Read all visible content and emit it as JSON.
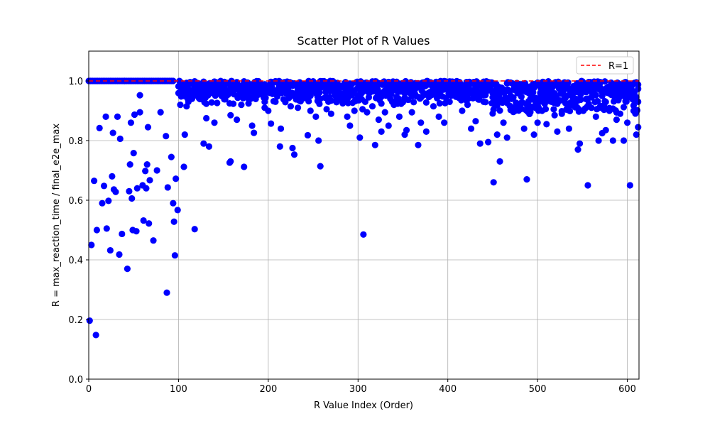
{
  "chart_data": {
    "type": "scatter",
    "title": "Scatter Plot of R Values",
    "xlabel": "R Value Index (Order)",
    "ylabel": "R = max_reaction_time / final_e2e_max",
    "xlim": [
      0,
      613
    ],
    "ylim": [
      0,
      1.1
    ],
    "xticks": [
      0,
      100,
      200,
      300,
      400,
      500,
      600
    ],
    "yticks": [
      0.0,
      0.2,
      0.4,
      0.6,
      0.8,
      1.0
    ],
    "xtick_labels": [
      "0",
      "100",
      "200",
      "300",
      "400",
      "500",
      "600"
    ],
    "ytick_labels": [
      "0.0",
      "0.2",
      "0.4",
      "0.6",
      "0.8",
      "1.0"
    ],
    "grid": true,
    "legend": "top-right",
    "series": [
      {
        "marker_color": "#0000ff",
        "points": [
          [
            1,
            0.196
          ],
          [
            3,
            0.45
          ],
          [
            6,
            0.665
          ],
          [
            8,
            0.148
          ],
          [
            9,
            0.5
          ],
          [
            12,
            0.842
          ],
          [
            15,
            0.59
          ],
          [
            17,
            0.648
          ],
          [
            19,
            0.88
          ],
          [
            20,
            0.505
          ],
          [
            22,
            0.598
          ],
          [
            24,
            0.432
          ],
          [
            26,
            0.68
          ],
          [
            27,
            0.826
          ],
          [
            28,
            0.636
          ],
          [
            30,
            0.628
          ],
          [
            32,
            0.88
          ],
          [
            34,
            0.418
          ],
          [
            35,
            0.806
          ],
          [
            37,
            0.487
          ],
          [
            40,
            1.0
          ],
          [
            43,
            0.37
          ],
          [
            45,
            0.63
          ],
          [
            46,
            0.72
          ],
          [
            47,
            0.86
          ],
          [
            48,
            0.606
          ],
          [
            49,
            0.5
          ],
          [
            50,
            0.758
          ],
          [
            51,
            0.887
          ],
          [
            53,
            0.496
          ],
          [
            54,
            0.64
          ],
          [
            57,
            0.895
          ],
          [
            57,
            0.952
          ],
          [
            60,
            0.65
          ],
          [
            61,
            0.532
          ],
          [
            63,
            0.698
          ],
          [
            64,
            0.64
          ],
          [
            65,
            0.72
          ],
          [
            66,
            0.845
          ],
          [
            67,
            0.522
          ],
          [
            68,
            0.667
          ],
          [
            72,
            0.465
          ],
          [
            76,
            0.7
          ],
          [
            80,
            0.895
          ],
          [
            86,
            0.815
          ],
          [
            87,
            0.29
          ],
          [
            88,
            0.643
          ],
          [
            92,
            0.745
          ],
          [
            94,
            0.59
          ],
          [
            95,
            0.528
          ],
          [
            96,
            0.415
          ],
          [
            97,
            0.672
          ],
          [
            99,
            0.567
          ],
          [
            102,
            0.92
          ],
          [
            103,
            0.95
          ],
          [
            104,
            0.97
          ],
          [
            106,
            0.712
          ],
          [
            107,
            0.82
          ],
          [
            109,
            0.915
          ],
          [
            111,
            0.93
          ],
          [
            113,
            0.96
          ],
          [
            115,
            0.94
          ],
          [
            116,
            0.97
          ],
          [
            118,
            0.503
          ],
          [
            128,
            0.79
          ],
          [
            131,
            0.875
          ],
          [
            134,
            0.78
          ],
          [
            140,
            0.86
          ],
          [
            150,
            0.96
          ],
          [
            157,
            0.726
          ],
          [
            158,
            0.73
          ],
          [
            158,
            0.885
          ],
          [
            165,
            0.87
          ],
          [
            170,
            0.92
          ],
          [
            173,
            0.712
          ],
          [
            178,
            0.94
          ],
          [
            182,
            0.85
          ],
          [
            184,
            0.826
          ],
          [
            190,
            0.965
          ],
          [
            196,
            0.91
          ],
          [
            200,
            0.9
          ],
          [
            203,
            0.857
          ],
          [
            210,
            0.97
          ],
          [
            213,
            0.78
          ],
          [
            214,
            0.84
          ],
          [
            220,
            0.96
          ],
          [
            225,
            0.915
          ],
          [
            227,
            0.775
          ],
          [
            229,
            0.753
          ],
          [
            233,
            0.91
          ],
          [
            240,
            0.96
          ],
          [
            244,
            0.818
          ],
          [
            247,
            0.9
          ],
          [
            253,
            0.88
          ],
          [
            256,
            0.8
          ],
          [
            258,
            0.714
          ],
          [
            265,
            0.905
          ],
          [
            270,
            0.89
          ],
          [
            276,
            0.93
          ],
          [
            283,
            0.925
          ],
          [
            288,
            0.88
          ],
          [
            291,
            0.85
          ],
          [
            296,
            0.9
          ],
          [
            302,
            0.81
          ],
          [
            305,
            0.905
          ],
          [
            306,
            0.485
          ],
          [
            310,
            0.895
          ],
          [
            316,
            0.915
          ],
          [
            319,
            0.785
          ],
          [
            323,
            0.87
          ],
          [
            326,
            0.83
          ],
          [
            330,
            0.895
          ],
          [
            334,
            0.85
          ],
          [
            340,
            0.92
          ],
          [
            346,
            0.88
          ],
          [
            352,
            0.82
          ],
          [
            354,
            0.835
          ],
          [
            360,
            0.895
          ],
          [
            367,
            0.785
          ],
          [
            370,
            0.86
          ],
          [
            376,
            0.83
          ],
          [
            384,
            0.915
          ],
          [
            390,
            0.88
          ],
          [
            396,
            0.86
          ],
          [
            402,
            0.93
          ],
          [
            410,
            0.955
          ],
          [
            416,
            0.9
          ],
          [
            422,
            0.92
          ],
          [
            426,
            0.84
          ],
          [
            431,
            0.865
          ],
          [
            436,
            0.79
          ],
          [
            440,
            0.93
          ],
          [
            445,
            0.795
          ],
          [
            450,
            0.945
          ],
          [
            451,
            0.66
          ],
          [
            455,
            0.82
          ],
          [
            458,
            0.73
          ],
          [
            462,
            0.86
          ],
          [
            466,
            0.81
          ],
          [
            470,
            0.95
          ],
          [
            475,
            0.9
          ],
          [
            481,
            0.925
          ],
          [
            485,
            0.84
          ],
          [
            488,
            0.67
          ],
          [
            492,
            0.94
          ],
          [
            496,
            0.82
          ],
          [
            500,
            0.86
          ],
          [
            505,
            0.9
          ],
          [
            510,
            0.855
          ],
          [
            514,
            0.94
          ],
          [
            519,
            0.885
          ],
          [
            522,
            0.83
          ],
          [
            527,
            0.89
          ],
          [
            531,
            0.95
          ],
          [
            535,
            0.84
          ],
          [
            541,
            0.93
          ],
          [
            545,
            0.77
          ],
          [
            547,
            0.79
          ],
          [
            551,
            0.9
          ],
          [
            556,
            0.65
          ],
          [
            560,
            0.91
          ],
          [
            565,
            0.88
          ],
          [
            568,
            0.8
          ],
          [
            572,
            0.825
          ],
          [
            576,
            0.835
          ],
          [
            580,
            0.9
          ],
          [
            584,
            0.8
          ],
          [
            588,
            0.87
          ],
          [
            592,
            0.89
          ],
          [
            596,
            0.8
          ],
          [
            600,
            0.86
          ],
          [
            603,
            0.65
          ],
          [
            607,
            0.9
          ],
          [
            610,
            0.82
          ],
          [
            612,
            0.845
          ],
          [
            612,
            0.93
          ]
        ]
      }
    ],
    "reference_line": {
      "name": "R=1",
      "value": 1.0,
      "color": "#ff0000",
      "style": "dashed"
    }
  }
}
